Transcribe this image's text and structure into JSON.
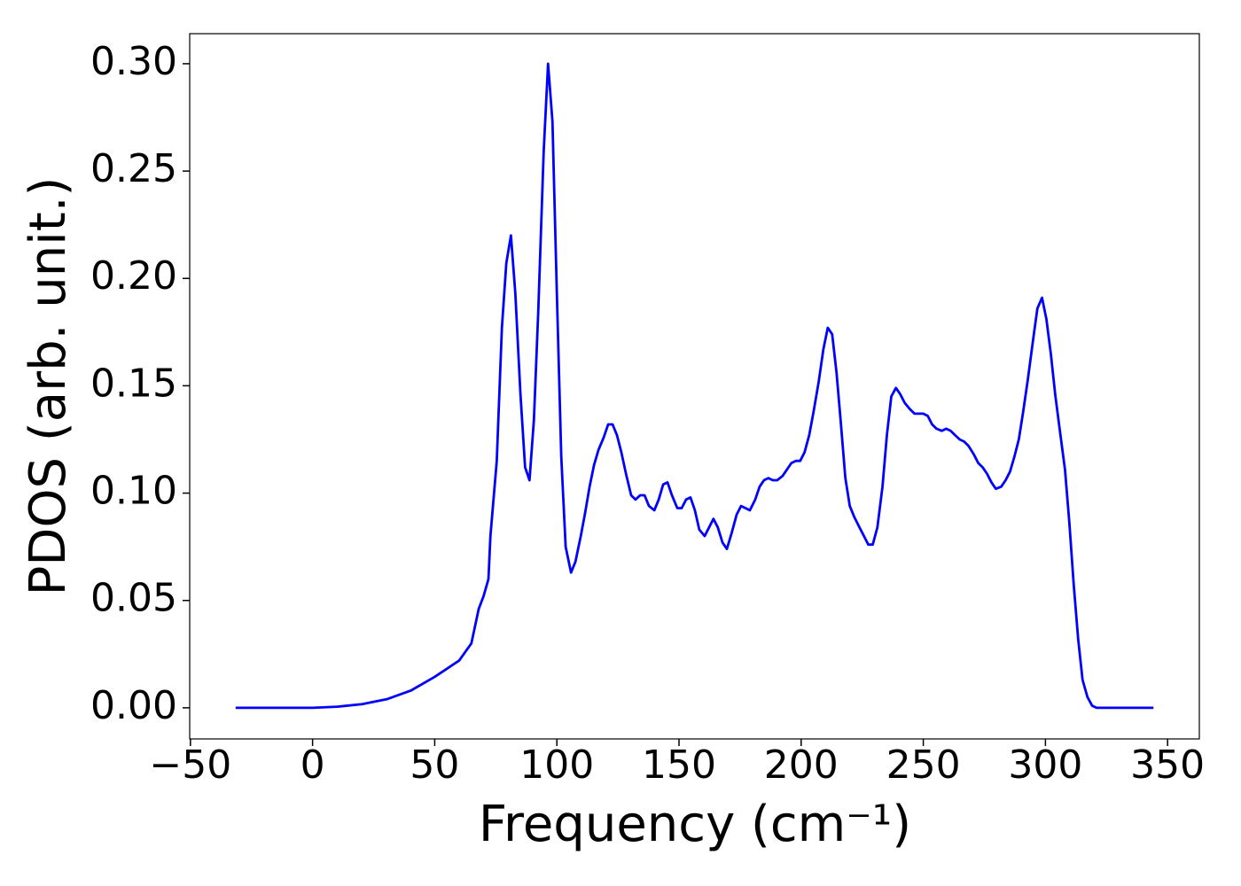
{
  "chart_data": {
    "type": "line",
    "xlabel": "Frequency (cm⁻¹)",
    "ylabel": "PDOS (arb. unit.)",
    "xlim": [
      -50.3,
      363
    ],
    "ylim": [
      -0.0145,
      0.314
    ],
    "xticks": [
      {
        "value": -50,
        "label": "−50"
      },
      0,
      50,
      100,
      150,
      200,
      250,
      300,
      350
    ],
    "yticks": [
      {
        "value": 0,
        "label": "0.00"
      },
      {
        "value": 0.05,
        "label": "0.05"
      },
      {
        "value": 0.1,
        "label": "0.10"
      },
      {
        "value": 0.15,
        "label": "0.15"
      },
      {
        "value": 0.2,
        "label": "0.20"
      },
      {
        "value": 0.25,
        "label": "0.25"
      },
      {
        "value": 0.3,
        "label": "0.30"
      }
    ],
    "x": [
      -31.5,
      0,
      10.1,
      20.3,
      30.4,
      40.2,
      50,
      60,
      65,
      68,
      70,
      72,
      72.8,
      75.4,
      77.5,
      79.3,
      81.2,
      83.0,
      85.1,
      87.0,
      88.8,
      90.6,
      92.4,
      94.6,
      96.4,
      98.2,
      100.0,
      101.8,
      103.6,
      105.8,
      107.6,
      109.8,
      111.6,
      113.4,
      115.2,
      117.0,
      119.2,
      121.0,
      122.8,
      124.6,
      126.4,
      128.3,
      130.4,
      132.2,
      134.1,
      135.9,
      137.7,
      139.9,
      141.7,
      143.5,
      145.3,
      147.1,
      149.3,
      151.1,
      152.9,
      154.7,
      156.5,
      158.3,
      160.5,
      162.3,
      164.1,
      165.9,
      167.8,
      169.6,
      171.7,
      173.6,
      175.4,
      177.2,
      179.0,
      181.2,
      183.0,
      184.8,
      186.6,
      188.4,
      190.2,
      192.4,
      194.2,
      196.0,
      197.8,
      199.6,
      201.4,
      203.3,
      205.1,
      207.2,
      209.1,
      210.9,
      212.7,
      214.5,
      216.3,
      218.1,
      219.9,
      221.7,
      223.9,
      225.7,
      227.5,
      229.3,
      231.2,
      233.3,
      235.1,
      236.9,
      238.8,
      240.6,
      242.4,
      244.6,
      246.4,
      248.2,
      250.0,
      251.8,
      253.6,
      255.4,
      257.6,
      259.4,
      261.2,
      263.0,
      264.9,
      266.7,
      268.5,
      270.7,
      272.5,
      274.3,
      276.1,
      277.9,
      279.7,
      281.9,
      283.7,
      285.5,
      287.3,
      289.1,
      290.9,
      292.8,
      294.9,
      296.7,
      298.6,
      300.4,
      302.2,
      304.0,
      305.8,
      308.0,
      309.8,
      311.6,
      313.4,
      315.2,
      317.2,
      319.1,
      320.9,
      344.2
    ],
    "series": [
      {
        "name": "PDOS",
        "color": "#0000ff",
        "values": [
          0,
          0,
          0.0005,
          0.0017,
          0.004,
          0.008,
          0.0144,
          0.022,
          0.03,
          0.046,
          0.052,
          0.06,
          0.08,
          0.115,
          0.177,
          0.207,
          0.22,
          0.193,
          0.146,
          0.112,
          0.106,
          0.134,
          0.185,
          0.259,
          0.3,
          0.273,
          0.193,
          0.117,
          0.075,
          0.063,
          0.068,
          0.08,
          0.091,
          0.103,
          0.113,
          0.12,
          0.126,
          0.132,
          0.132,
          0.127,
          0.119,
          0.109,
          0.099,
          0.097,
          0.099,
          0.099,
          0.094,
          0.092,
          0.097,
          0.104,
          0.105,
          0.099,
          0.093,
          0.093,
          0.097,
          0.098,
          0.092,
          0.083,
          0.08,
          0.084,
          0.088,
          0.084,
          0.077,
          0.074,
          0.082,
          0.09,
          0.094,
          0.093,
          0.092,
          0.097,
          0.103,
          0.106,
          0.107,
          0.106,
          0.106,
          0.108,
          0.111,
          0.114,
          0.115,
          0.115,
          0.119,
          0.127,
          0.138,
          0.152,
          0.167,
          0.177,
          0.174,
          0.156,
          0.132,
          0.107,
          0.094,
          0.089,
          0.084,
          0.08,
          0.076,
          0.076,
          0.084,
          0.103,
          0.127,
          0.145,
          0.149,
          0.146,
          0.142,
          0.139,
          0.137,
          0.137,
          0.137,
          0.136,
          0.132,
          0.13,
          0.129,
          0.13,
          0.129,
          0.127,
          0.125,
          0.124,
          0.122,
          0.118,
          0.114,
          0.112,
          0.109,
          0.105,
          0.102,
          0.103,
          0.106,
          0.11,
          0.117,
          0.125,
          0.138,
          0.153,
          0.171,
          0.186,
          0.191,
          0.181,
          0.165,
          0.146,
          0.13,
          0.111,
          0.086,
          0.057,
          0.032,
          0.013,
          0.005,
          0.001,
          0,
          0
        ]
      }
    ]
  }
}
